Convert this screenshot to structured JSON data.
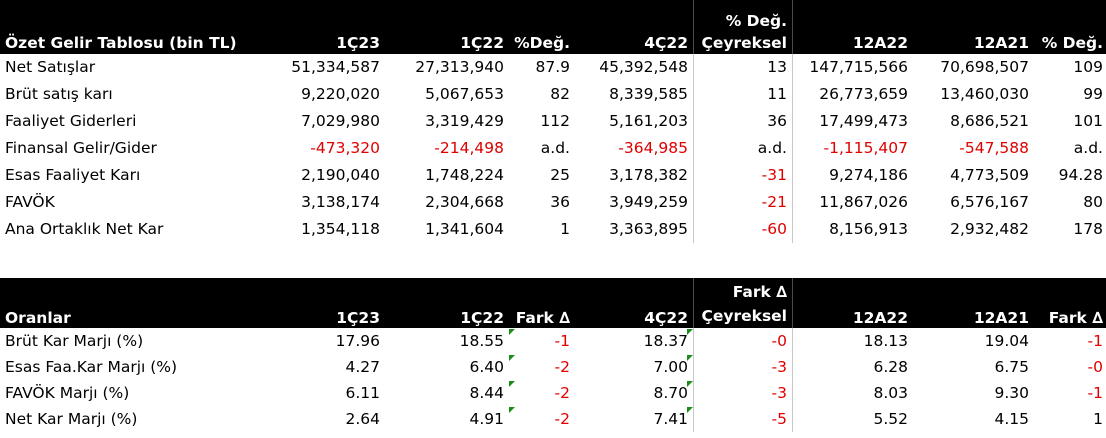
{
  "income": {
    "header": {
      "label": "Özet Gelir Tablosu (bin TL)",
      "cols": [
        "1Ç23",
        "1Ç22",
        "%Değ.",
        "4Ç22",
        "Çeyreksel",
        "12A22",
        "12A21",
        "% Değ."
      ],
      "col5_top": "% Değ."
    },
    "rows": [
      {
        "label": "Net Satışlar",
        "v": [
          "51,334,587",
          "27,313,940",
          "87.9",
          "45,392,548",
          "13",
          "147,715,566",
          "70,698,507",
          "109"
        ]
      },
      {
        "label": "Brüt satış karı",
        "v": [
          "9,220,020",
          "5,067,653",
          "82",
          "8,339,585",
          "11",
          "26,773,659",
          "13,460,030",
          "99"
        ]
      },
      {
        "label": "Faaliyet Giderleri",
        "v": [
          "7,029,980",
          "3,319,429",
          "112",
          "5,161,203",
          "36",
          "17,499,473",
          "8,686,521",
          "101"
        ]
      },
      {
        "label": "Finansal Gelir/Gider",
        "v": [
          "-473,320",
          "-214,498",
          "a.d.",
          "-364,985",
          "a.d.",
          "-1,115,407",
          "-547,588",
          "a.d."
        ]
      },
      {
        "label": "Esas Faaliyet Karı",
        "v": [
          "2,190,040",
          "1,748,224",
          "25",
          "3,178,382",
          "-31",
          "9,274,186",
          "4,773,509",
          "94.28"
        ]
      },
      {
        "label": "FAVÖK",
        "v": [
          "3,138,174",
          "2,304,668",
          "36",
          "3,949,259",
          "-21",
          "11,867,026",
          "6,576,167",
          "80"
        ]
      },
      {
        "label": "Ana Ortaklık Net Kar",
        "v": [
          "1,354,118",
          "1,341,604",
          "1",
          "3,363,895",
          "-60",
          "8,156,913",
          "2,932,482",
          "178"
        ]
      }
    ]
  },
  "ratios": {
    "header": {
      "label": "Oranlar",
      "cols": [
        "1Ç23",
        "1Ç22",
        "Fark ∆",
        "4Ç22",
        "Çeyreksel",
        "12A22",
        "12A21",
        "Fark ∆"
      ],
      "col5_top": "Fark ∆"
    },
    "rows": [
      {
        "label": "Brüt Kar Marjı (%)",
        "v": [
          "17.96",
          "18.55",
          "-1",
          "18.37",
          "-0",
          "18.13",
          "19.04",
          "-1"
        ]
      },
      {
        "label": "Esas Faa.Kar Marjı (%)",
        "v": [
          "4.27",
          "6.40",
          "-2",
          "7.00",
          "-3",
          "6.28",
          "6.75",
          "-0"
        ]
      },
      {
        "label": "FAVÖK Marjı (%)",
        "v": [
          "6.11",
          "8.44",
          "-2",
          "8.70",
          "-3",
          "8.03",
          "9.30",
          "-1"
        ]
      },
      {
        "label": "Net Kar Marjı (%)",
        "v": [
          "2.64",
          "4.91",
          "-2",
          "7.41",
          "-5",
          "5.52",
          "4.15",
          "1"
        ]
      }
    ]
  },
  "colors": {
    "negative": "#e00000",
    "header_bg": "#000000",
    "comment_marker": "#1a8c1a"
  }
}
